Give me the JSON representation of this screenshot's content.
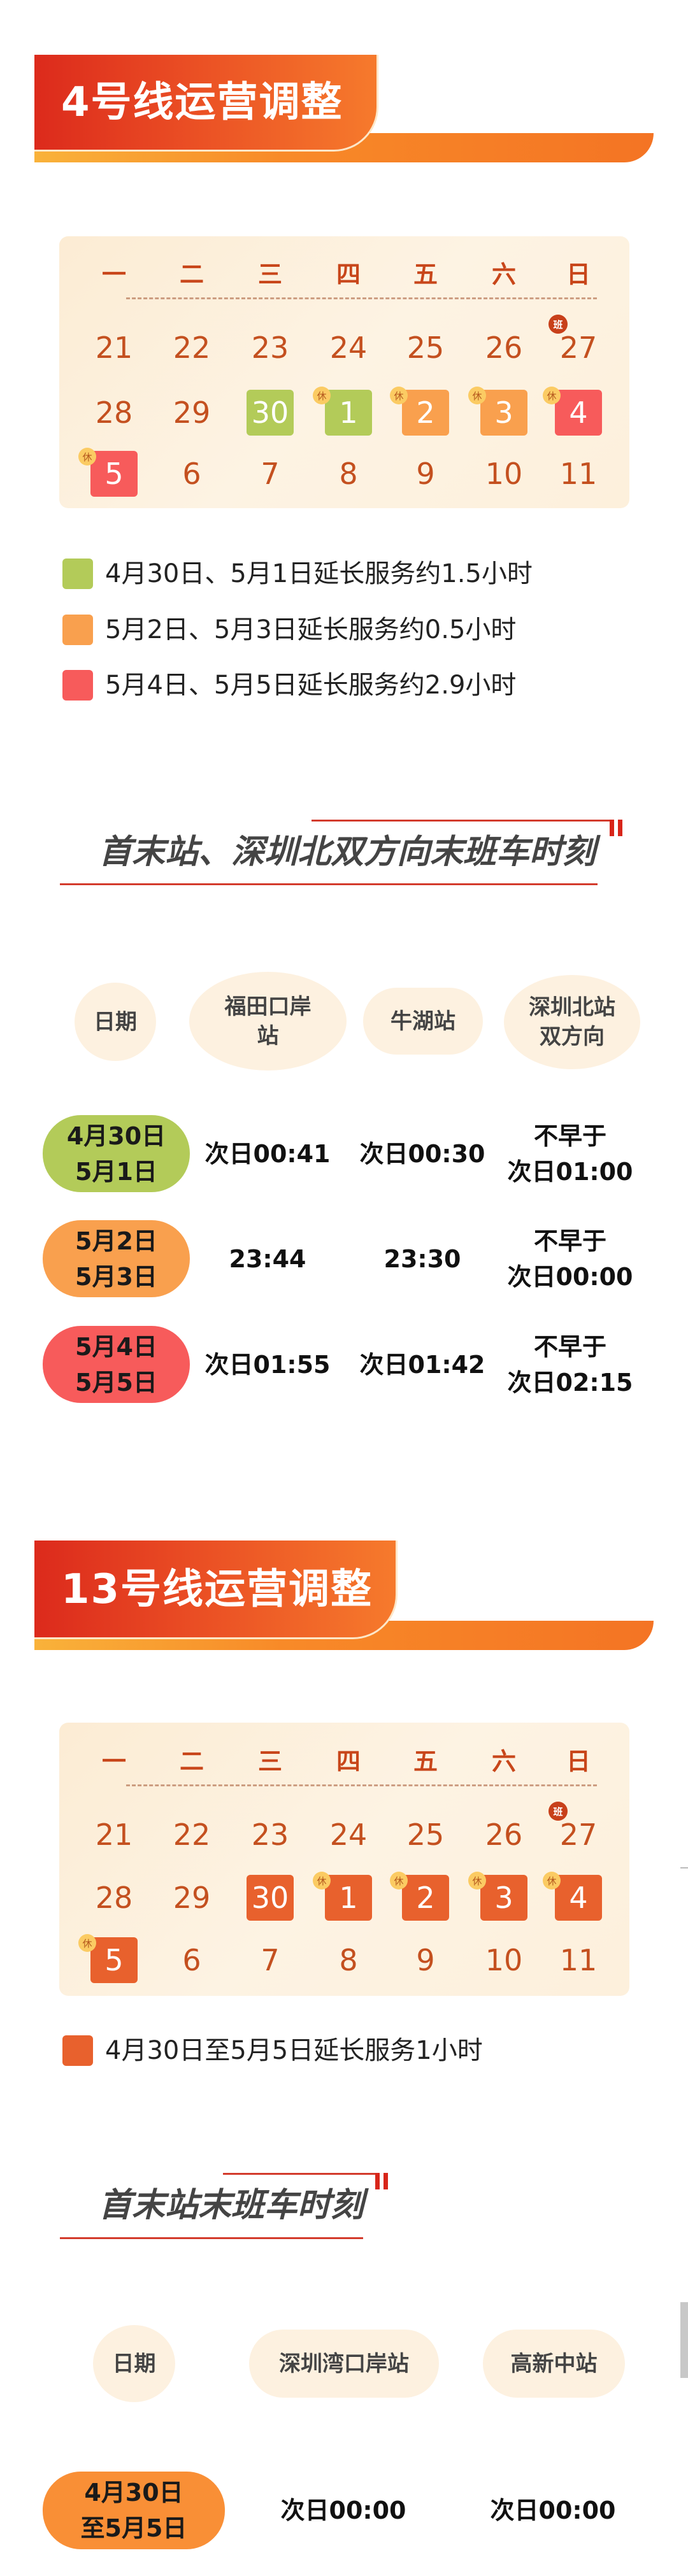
{
  "colors": {
    "green": "#b3cb59",
    "orange": "#f9a04e",
    "red": "#f75b5b",
    "line13": "#e8612d",
    "line13_pill": "#f98f36"
  },
  "line4": {
    "title": "4号线运营调整",
    "calendar": {
      "weekdays": [
        "一",
        "二",
        "三",
        "四",
        "五",
        "六",
        "日"
      ],
      "weeks": [
        [
          {
            "d": "21"
          },
          {
            "d": "22"
          },
          {
            "d": "23"
          },
          {
            "d": "24"
          },
          {
            "d": "25"
          },
          {
            "d": "26"
          },
          {
            "d": "27",
            "badge": "班"
          }
        ],
        [
          {
            "d": "28"
          },
          {
            "d": "29"
          },
          {
            "d": "30",
            "mark": "green"
          },
          {
            "d": "1",
            "mark": "green",
            "badge": "休"
          },
          {
            "d": "2",
            "mark": "orange",
            "badge": "休"
          },
          {
            "d": "3",
            "mark": "orange",
            "badge": "休"
          },
          {
            "d": "4",
            "mark": "red",
            "badge": "休"
          }
        ],
        [
          {
            "d": "5",
            "mark": "red",
            "badge": "休"
          },
          {
            "d": "6"
          },
          {
            "d": "7"
          },
          {
            "d": "8"
          },
          {
            "d": "9"
          },
          {
            "d": "10"
          },
          {
            "d": "11"
          }
        ]
      ]
    },
    "legend": [
      {
        "mark": "green",
        "text": "4月30日、5月1日延长服务约1.5小时"
      },
      {
        "mark": "orange",
        "text": "5月2日、5月3日延长服务约0.5小时"
      },
      {
        "mark": "red",
        "text": "5月4日、5月5日延长服务约2.9小时"
      }
    ],
    "section_title": "首末站、深圳北双方向末班车时刻",
    "table": {
      "headers": [
        [
          "日期"
        ],
        [
          "福田口岸",
          "站"
        ],
        [
          "牛湖站"
        ],
        [
          "深圳北站",
          "双方向"
        ]
      ],
      "rows": [
        {
          "mark": "green",
          "date": [
            "4月30日",
            "5月1日"
          ],
          "cells": [
            [
              "次日00:41"
            ],
            [
              "次日00:30"
            ],
            [
              "不早于",
              "次日01:00"
            ]
          ]
        },
        {
          "mark": "orange",
          "date": [
            "5月2日",
            "5月3日"
          ],
          "cells": [
            [
              "23:44"
            ],
            [
              "23:30"
            ],
            [
              "不早于",
              "次日00:00"
            ]
          ]
        },
        {
          "mark": "red",
          "date": [
            "5月4日",
            "5月5日"
          ],
          "cells": [
            [
              "次日01:55"
            ],
            [
              "次日01:42"
            ],
            [
              "不早于",
              "次日02:15"
            ]
          ]
        }
      ]
    }
  },
  "line13": {
    "title": "13号线运营调整",
    "calendar": {
      "weekdays": [
        "一",
        "二",
        "三",
        "四",
        "五",
        "六",
        "日"
      ],
      "weeks": [
        [
          {
            "d": "21"
          },
          {
            "d": "22"
          },
          {
            "d": "23"
          },
          {
            "d": "24"
          },
          {
            "d": "25"
          },
          {
            "d": "26"
          },
          {
            "d": "27",
            "badge": "班"
          }
        ],
        [
          {
            "d": "28"
          },
          {
            "d": "29"
          },
          {
            "d": "30",
            "mark": "line13"
          },
          {
            "d": "1",
            "mark": "line13",
            "badge": "休"
          },
          {
            "d": "2",
            "mark": "line13",
            "badge": "休"
          },
          {
            "d": "3",
            "mark": "line13",
            "badge": "休"
          },
          {
            "d": "4",
            "mark": "line13",
            "badge": "休"
          }
        ],
        [
          {
            "d": "5",
            "mark": "line13",
            "badge": "休"
          },
          {
            "d": "6"
          },
          {
            "d": "7"
          },
          {
            "d": "8"
          },
          {
            "d": "9"
          },
          {
            "d": "10"
          },
          {
            "d": "11"
          }
        ]
      ]
    },
    "legend": [
      {
        "mark": "line13",
        "text": "4月30日至5月5日延长服务1小时"
      }
    ],
    "section_title": "首末站末班车时刻",
    "table": {
      "headers": [
        [
          "日期"
        ],
        [
          "深圳湾口岸站"
        ],
        [
          "高新中站"
        ]
      ],
      "rows": [
        {
          "mark": "line13_pill",
          "date": [
            "4月30日",
            "至5月5日"
          ],
          "cells": [
            [
              "次日00:00"
            ],
            [
              "次日00:00"
            ]
          ]
        }
      ]
    }
  }
}
